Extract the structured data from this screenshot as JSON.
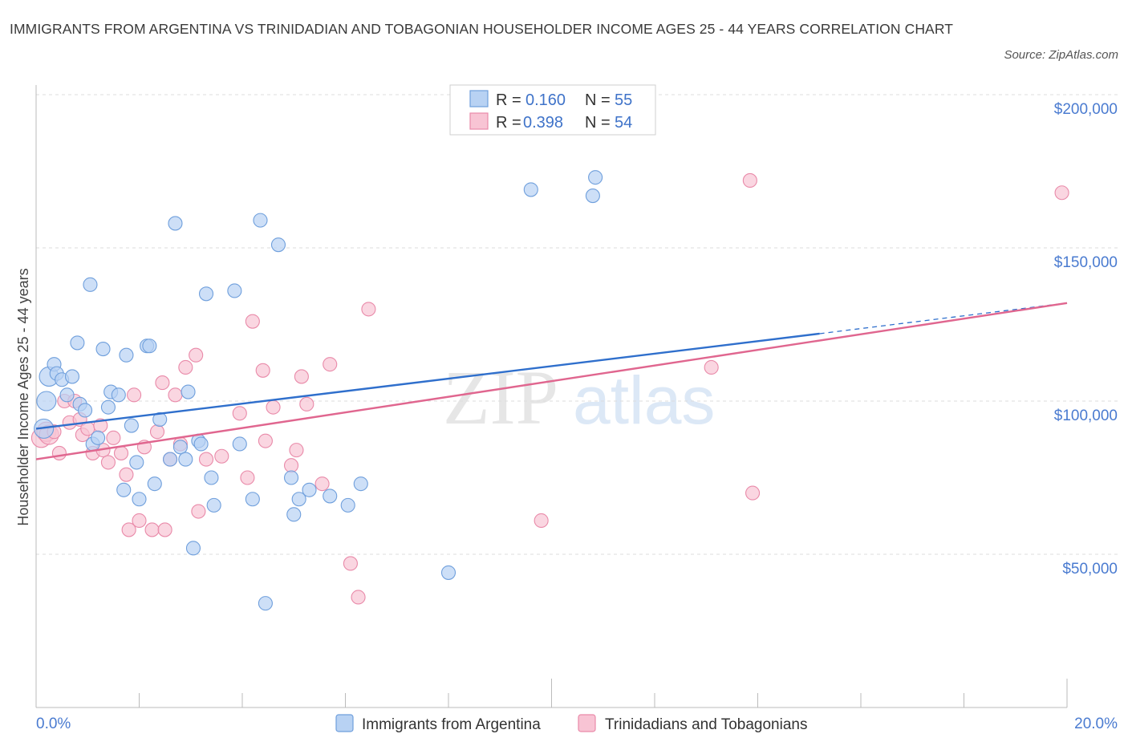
{
  "header": {
    "title": "IMMIGRANTS FROM ARGENTINA VS TRINIDADIAN AND TOBAGONIAN HOUSEHOLDER INCOME AGES 25 - 44 YEARS CORRELATION CHART",
    "source": "Source: ZipAtlas.com"
  },
  "watermark": {
    "zip": "ZIP",
    "atlas": "atlas"
  },
  "legend_box": {
    "rows": [
      {
        "r_label": "R =",
        "r_value": "0.160",
        "n_label": "N =",
        "n_value": "55"
      },
      {
        "r_label": "R =",
        "r_value": "0.398",
        "n_label": "N =",
        "n_value": "54"
      }
    ]
  },
  "colors": {
    "series1_fill": "#b8d2f3",
    "series1_stroke": "#6f9fdc",
    "series1_line": "#2f6fcc",
    "series2_fill": "#f8c4d4",
    "series2_stroke": "#e98aa9",
    "series2_line": "#e0668f",
    "axis_text": "#4a7bd0",
    "grid": "#dddddd"
  },
  "chart_data": {
    "type": "scatter",
    "title": "IMMIGRANTS FROM ARGENTINA VS TRINIDADIAN AND TOBAGONIAN HOUSEHOLDER INCOME AGES 25 - 44 YEARS CORRELATION CHART",
    "xlabel": "",
    "ylabel": "Householder Income Ages 25 - 44 years",
    "xlim": [
      0,
      20
    ],
    "ylim": [
      0,
      200000
    ],
    "x_tick_labels": [
      "0.0%",
      "20.0%"
    ],
    "y_tick_labels": [
      "$50,000",
      "$100,000",
      "$150,000",
      "$200,000"
    ],
    "y_tick_values": [
      50000,
      100000,
      150000,
      200000
    ],
    "grid": true,
    "legend_position": "top-center",
    "series": [
      {
        "name": "Immigrants from Argentina",
        "r": 0.16,
        "n": 55,
        "trend": {
          "x0": 0.0,
          "y0": 91000,
          "x1": 15.2,
          "y1": 122000,
          "dash_to_x": 20.0,
          "dash_to_y": 132000
        },
        "points": [
          [
            0.15,
            91000
          ],
          [
            0.2,
            100000
          ],
          [
            0.25,
            108000
          ],
          [
            0.35,
            112000
          ],
          [
            0.4,
            109000
          ],
          [
            0.5,
            107000
          ],
          [
            0.6,
            102000
          ],
          [
            0.7,
            108000
          ],
          [
            0.8,
            119000
          ],
          [
            0.85,
            99000
          ],
          [
            0.95,
            97000
          ],
          [
            1.05,
            138000
          ],
          [
            1.1,
            86000
          ],
          [
            1.2,
            88000
          ],
          [
            1.3,
            117000
          ],
          [
            1.4,
            98000
          ],
          [
            1.45,
            103000
          ],
          [
            1.6,
            102000
          ],
          [
            1.7,
            71000
          ],
          [
            1.75,
            115000
          ],
          [
            1.85,
            92000
          ],
          [
            1.95,
            80000
          ],
          [
            2.0,
            68000
          ],
          [
            2.15,
            118000
          ],
          [
            2.2,
            118000
          ],
          [
            2.3,
            73000
          ],
          [
            2.4,
            94000
          ],
          [
            2.6,
            81000
          ],
          [
            2.7,
            158000
          ],
          [
            2.8,
            85000
          ],
          [
            2.9,
            81000
          ],
          [
            2.95,
            103000
          ],
          [
            3.05,
            52000
          ],
          [
            3.15,
            87000
          ],
          [
            3.2,
            86000
          ],
          [
            3.3,
            135000
          ],
          [
            3.4,
            75000
          ],
          [
            3.45,
            66000
          ],
          [
            3.85,
            136000
          ],
          [
            3.95,
            86000
          ],
          [
            4.2,
            68000
          ],
          [
            4.35,
            159000
          ],
          [
            4.45,
            34000
          ],
          [
            4.7,
            151000
          ],
          [
            4.95,
            75000
          ],
          [
            5.0,
            63000
          ],
          [
            5.1,
            68000
          ],
          [
            5.3,
            71000
          ],
          [
            5.7,
            69000
          ],
          [
            6.05,
            66000
          ],
          [
            6.3,
            73000
          ],
          [
            8.0,
            44000
          ],
          [
            9.6,
            169000
          ],
          [
            10.8,
            167000
          ],
          [
            10.85,
            173000
          ]
        ]
      },
      {
        "name": "Trinidadians and Tobagonians",
        "r": 0.398,
        "n": 54,
        "trend": {
          "x0": 0.0,
          "y0": 81000,
          "x1": 20.0,
          "y1": 132000
        },
        "points": [
          [
            0.1,
            88000
          ],
          [
            0.2,
            90000
          ],
          [
            0.25,
            89000
          ],
          [
            0.35,
            90000
          ],
          [
            0.45,
            83000
          ],
          [
            0.55,
            100000
          ],
          [
            0.65,
            93000
          ],
          [
            0.75,
            100000
          ],
          [
            0.85,
            94000
          ],
          [
            0.9,
            89000
          ],
          [
            1.0,
            91000
          ],
          [
            1.1,
            83000
          ],
          [
            1.25,
            92000
          ],
          [
            1.3,
            84000
          ],
          [
            1.4,
            80000
          ],
          [
            1.5,
            88000
          ],
          [
            1.65,
            83000
          ],
          [
            1.75,
            76000
          ],
          [
            1.8,
            58000
          ],
          [
            1.9,
            102000
          ],
          [
            2.0,
            61000
          ],
          [
            2.1,
            85000
          ],
          [
            2.25,
            58000
          ],
          [
            2.35,
            90000
          ],
          [
            2.45,
            106000
          ],
          [
            2.5,
            58000
          ],
          [
            2.6,
            81000
          ],
          [
            2.7,
            102000
          ],
          [
            2.8,
            86000
          ],
          [
            2.9,
            111000
          ],
          [
            3.1,
            115000
          ],
          [
            3.15,
            64000
          ],
          [
            3.3,
            81000
          ],
          [
            3.6,
            82000
          ],
          [
            3.95,
            96000
          ],
          [
            4.1,
            75000
          ],
          [
            4.2,
            126000
          ],
          [
            4.4,
            110000
          ],
          [
            4.45,
            87000
          ],
          [
            4.6,
            98000
          ],
          [
            4.95,
            79000
          ],
          [
            5.05,
            84000
          ],
          [
            5.15,
            108000
          ],
          [
            5.25,
            99000
          ],
          [
            5.55,
            73000
          ],
          [
            5.7,
            112000
          ],
          [
            6.1,
            47000
          ],
          [
            6.25,
            36000
          ],
          [
            6.45,
            130000
          ],
          [
            9.8,
            61000
          ],
          [
            13.1,
            111000
          ],
          [
            13.85,
            172000
          ],
          [
            13.9,
            70000
          ],
          [
            19.9,
            168000
          ]
        ]
      }
    ]
  }
}
